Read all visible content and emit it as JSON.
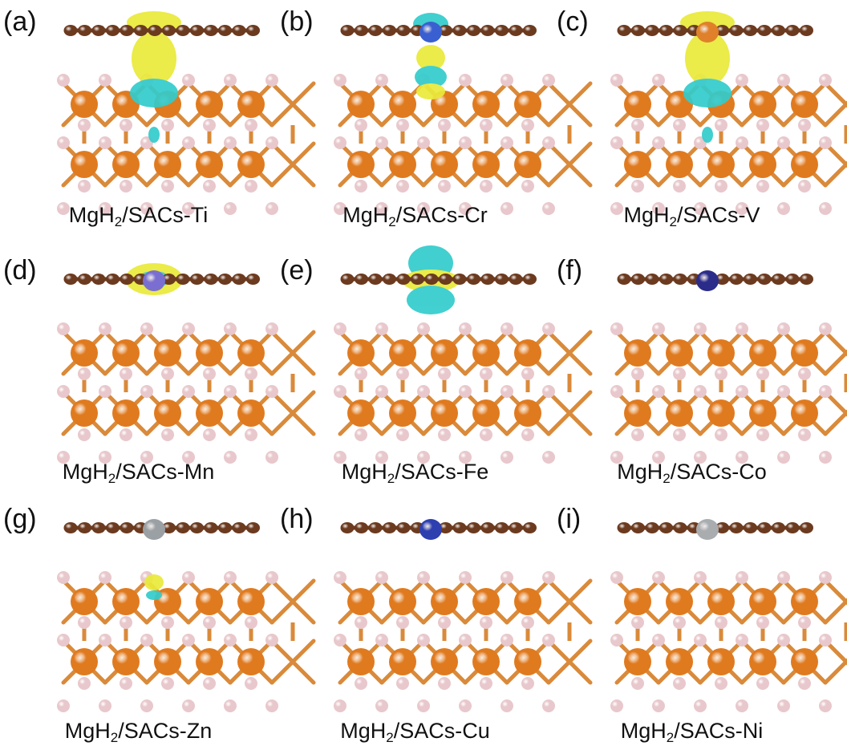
{
  "panels": [
    {
      "letter": "(a)",
      "caption": {
        "pre": "MgH",
        "sub": "2",
        "post": "/SACs-Ti"
      },
      "metal": "Ti",
      "atom_color": "#8a8f96",
      "show_atom": false,
      "density": "large"
    },
    {
      "letter": "(b)",
      "caption": {
        "pre": "MgH",
        "sub": "2",
        "post": "/SACs-Cr"
      },
      "metal": "Cr",
      "atom_color": "#3a5fd0",
      "show_atom": true,
      "density": "medium"
    },
    {
      "letter": "(c)",
      "caption": {
        "pre": "MgH",
        "sub": "2",
        "post": "/SACs-V"
      },
      "metal": "V",
      "atom_color": "#e0802a",
      "show_atom": true,
      "density": "large"
    },
    {
      "letter": "(d)",
      "caption": {
        "pre": "MgH",
        "sub": "2",
        "post": "/SACs-Mn"
      },
      "metal": "Mn",
      "atom_color": "#7a6fd0",
      "show_atom": true,
      "density": "flat"
    },
    {
      "letter": "(e)",
      "caption": {
        "pre": "MgH",
        "sub": "2",
        "post": "/SACs-Fe"
      },
      "metal": "Fe",
      "atom_color": "#8a8f96",
      "show_atom": false,
      "density": "up"
    },
    {
      "letter": "(f)",
      "caption": {
        "pre": "MgH",
        "sub": "2",
        "post": "/SACs-Co"
      },
      "metal": "Co",
      "atom_color": "#2b2b8a",
      "show_atom": true,
      "density": "none"
    },
    {
      "letter": "(g)",
      "caption": {
        "pre": "MgH",
        "sub": "2",
        "post": "/SACs-Zn"
      },
      "metal": "Zn",
      "atom_color": "#9aa0a4",
      "show_atom": true,
      "density": "small"
    },
    {
      "letter": "(h)",
      "caption": {
        "pre": "MgH",
        "sub": "2",
        "post": "/SACs-Cu"
      },
      "metal": "Cu",
      "atom_color": "#2e3fb0",
      "show_atom": true,
      "density": "none"
    },
    {
      "letter": "(i)",
      "caption": {
        "pre": "MgH",
        "sub": "2",
        "post": "/SACs-Ni"
      },
      "metal": "Ni",
      "atom_color": "#a9adb0",
      "show_atom": true,
      "density": "none"
    }
  ],
  "colors": {
    "carbon": "#6b3a1f",
    "magnesium": "#e07a1f",
    "hydrogen": "#e8c8cc",
    "bond": "#d98a3a",
    "density_yellow": "#eaea3a",
    "density_cyan": "#33cccc"
  }
}
